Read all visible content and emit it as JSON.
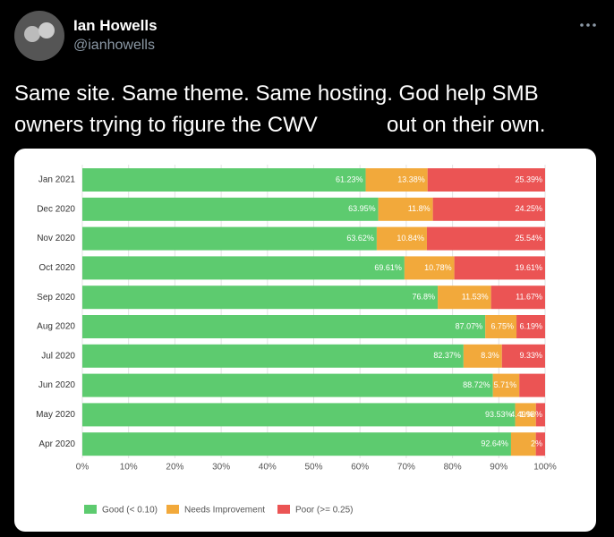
{
  "tweet": {
    "name": "Ian Howells",
    "handle": "@ianhowells",
    "text": [
      "Same site. Same theme. Same hosting. God help SMB",
      "owners trying to figure the CWV",
      "out on their own."
    ]
  },
  "chart_data": {
    "type": "stacked-bar-horizontal",
    "categories": [
      "Jan 2021",
      "Dec 2020",
      "Nov 2020",
      "Oct 2020",
      "Sep 2020",
      "Aug 2020",
      "Jul 2020",
      "Jun 2020",
      "May 2020",
      "Apr 2020"
    ],
    "series": [
      {
        "name": "Good (< 0.10)",
        "color": "#5dcb6f",
        "values": [
          61.23,
          63.95,
          63.62,
          69.61,
          76.8,
          87.07,
          82.37,
          88.72,
          93.53,
          92.64
        ],
        "value_labels": [
          "61.23%",
          "63.95%",
          "63.62%",
          "69.61%",
          "76.8%",
          "87.07%",
          "82.37%",
          "88.72%",
          "93.53%",
          "92.64%"
        ]
      },
      {
        "name": "Needs Improvement",
        "color": "#f2a93b",
        "values": [
          13.38,
          11.8,
          10.84,
          10.78,
          11.53,
          6.75,
          8.3,
          5.71,
          4.49,
          5.36
        ],
        "value_labels": [
          "13.38%",
          "11.8%",
          "10.84%",
          "10.78%",
          "11.53%",
          "6.75%",
          "8.3%",
          "5.71%",
          "4.49%",
          null
        ]
      },
      {
        "name": "Poor (>= 0.25)",
        "color": "#eb5454",
        "values": [
          25.39,
          24.25,
          25.54,
          19.61,
          11.67,
          6.19,
          9.33,
          5.57,
          1.98,
          2
        ],
        "value_labels": [
          "25.39%",
          "24.25%",
          "25.54%",
          "19.61%",
          "11.67%",
          "6.19%",
          "9.33%",
          null,
          "1.98%",
          "2%"
        ]
      }
    ],
    "xlim": [
      0,
      100
    ],
    "xticks": [
      {
        "value": 0,
        "label": "0%"
      },
      {
        "value": 10,
        "label": "10%"
      },
      {
        "value": 20,
        "label": "20%"
      },
      {
        "value": 30,
        "label": "30%"
      },
      {
        "value": 40,
        "label": "40%"
      },
      {
        "value": 50,
        "label": "50%"
      },
      {
        "value": 60,
        "label": "60%"
      },
      {
        "value": 70,
        "label": "70%"
      },
      {
        "value": 80,
        "label": "80%"
      },
      {
        "value": 90,
        "label": "90%"
      },
      {
        "value": 100,
        "label": "100%"
      }
    ],
    "grid": true,
    "legend": "bottom"
  }
}
